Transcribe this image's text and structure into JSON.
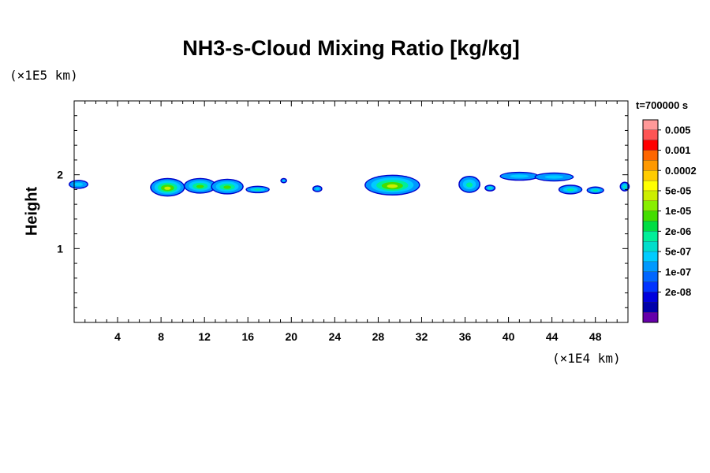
{
  "chart_data": {
    "type": "heatmap",
    "title": "NH3-s-Cloud Mixing Ratio [kg/kg]",
    "ylabel": "Height",
    "y_exponent_label": "(×1E5 km)",
    "x_exponent_label": "(×1E4 km)",
    "time_label": "t=700000 s",
    "xlim": [
      0,
      51
    ],
    "ylim": [
      0,
      3
    ],
    "x_ticks": [
      "4",
      "8",
      "12",
      "16",
      "20",
      "24",
      "28",
      "32",
      "36",
      "40",
      "44",
      "48"
    ],
    "y_ticks": [
      "1",
      "2"
    ],
    "colorbar": {
      "labels": [
        "0.005",
        "0.001",
        "0.0002",
        "5e-05",
        "1e-05",
        "2e-06",
        "5e-07",
        "1e-07",
        "2e-08"
      ],
      "colors": [
        "#ff9999",
        "#ff5555",
        "#ff0000",
        "#ff6600",
        "#ff9900",
        "#ffcc00",
        "#ffff00",
        "#ccee00",
        "#88ee00",
        "#44dd00",
        "#00dd44",
        "#00ee99",
        "#00ddcc",
        "#00ccff",
        "#0099ff",
        "#0066ff",
        "#0033ff",
        "#0000dd",
        "#0000aa",
        "#6600aa"
      ]
    },
    "cloud_patches": [
      {
        "x": 0.4,
        "y": 1.87,
        "w": 1.6,
        "h": 0.09,
        "level": 0.25
      },
      {
        "x": 8.6,
        "y": 1.83,
        "w": 3.0,
        "h": 0.22,
        "level": 0.75
      },
      {
        "x": 11.6,
        "y": 1.85,
        "w": 2.8,
        "h": 0.18,
        "level": 0.5
      },
      {
        "x": 14.1,
        "y": 1.84,
        "w": 2.8,
        "h": 0.18,
        "level": 0.55
      },
      {
        "x": 16.9,
        "y": 1.8,
        "w": 2.0,
        "h": 0.07,
        "level": 0.3
      },
      {
        "x": 19.3,
        "y": 1.92,
        "w": 0.4,
        "h": 0.04,
        "level": 0.1
      },
      {
        "x": 22.4,
        "y": 1.81,
        "w": 0.7,
        "h": 0.06,
        "level": 0.25
      },
      {
        "x": 29.3,
        "y": 1.86,
        "w": 4.9,
        "h": 0.25,
        "level": 0.85
      },
      {
        "x": 36.4,
        "y": 1.87,
        "w": 1.8,
        "h": 0.2,
        "level": 0.45
      },
      {
        "x": 38.3,
        "y": 1.82,
        "w": 0.8,
        "h": 0.06,
        "level": 0.3
      },
      {
        "x": 41.0,
        "y": 1.98,
        "w": 3.4,
        "h": 0.09,
        "level": 0.15
      },
      {
        "x": 44.2,
        "y": 1.97,
        "w": 3.4,
        "h": 0.09,
        "level": 0.12
      },
      {
        "x": 45.7,
        "y": 1.8,
        "w": 2.0,
        "h": 0.1,
        "level": 0.45
      },
      {
        "x": 48.0,
        "y": 1.79,
        "w": 1.4,
        "h": 0.07,
        "level": 0.4
      },
      {
        "x": 50.7,
        "y": 1.84,
        "w": 0.7,
        "h": 0.1,
        "level": 0.35
      }
    ]
  }
}
